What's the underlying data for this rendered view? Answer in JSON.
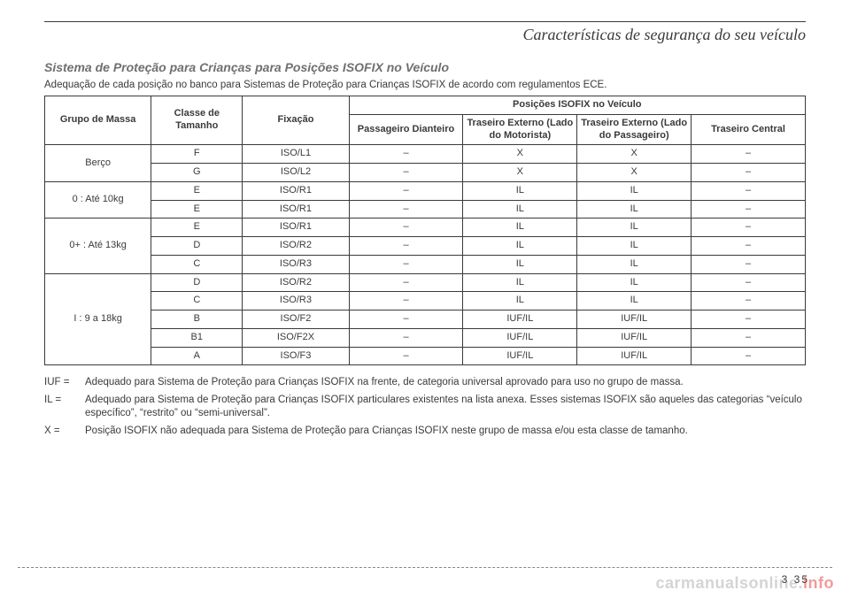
{
  "header": {
    "title": "Características de segurança do seu veículo"
  },
  "section": {
    "title": "Sistema de Proteção para Crianças para Posições ISOFIX no Veículo",
    "lead": "Adequação de cada posição no banco para Sistemas de Proteção para Crianças ISOFIX de acordo com regulamentos ECE."
  },
  "table": {
    "headers": {
      "massGroup": "Grupo de Massa",
      "sizeClass": "Classe de Tamanho",
      "fixation": "Fixação",
      "positionsTitle": "Posições ISOFIX no Veículo",
      "frontPassenger": "Passageiro Dianteiro",
      "rearDriver": "Traseiro Externo (Lado do Motorista)",
      "rearPassenger": "Traseiro Externo (Lado do Passageiro)",
      "rearCenter": "Traseiro Central"
    },
    "colWidths": [
      "14%",
      "12%",
      "14%",
      "15%",
      "15%",
      "15%",
      "15%"
    ],
    "groups": [
      {
        "label": "Berço",
        "rows": [
          {
            "sizeClass": "F",
            "fixation": "ISO/L1",
            "front": "–",
            "rearDriver": "X",
            "rearPassenger": "X",
            "rearCenter": "–"
          },
          {
            "sizeClass": "G",
            "fixation": "ISO/L2",
            "front": "–",
            "rearDriver": "X",
            "rearPassenger": "X",
            "rearCenter": "–"
          }
        ]
      },
      {
        "label": "0 : Até 10kg",
        "rows": [
          {
            "sizeClass": "E",
            "fixation": "ISO/R1",
            "front": "–",
            "rearDriver": "IL",
            "rearPassenger": "IL",
            "rearCenter": "–"
          },
          {
            "sizeClass": "E",
            "fixation": "ISO/R1",
            "front": "–",
            "rearDriver": "IL",
            "rearPassenger": "IL",
            "rearCenter": "–"
          }
        ]
      },
      {
        "label": "0+ : Até 13kg",
        "rows": [
          {
            "sizeClass": "E",
            "fixation": "ISO/R1",
            "front": "–",
            "rearDriver": "IL",
            "rearPassenger": "IL",
            "rearCenter": "–"
          },
          {
            "sizeClass": "D",
            "fixation": "ISO/R2",
            "front": "–",
            "rearDriver": "IL",
            "rearPassenger": "IL",
            "rearCenter": "–"
          },
          {
            "sizeClass": "C",
            "fixation": "ISO/R3",
            "front": "–",
            "rearDriver": "IL",
            "rearPassenger": "IL",
            "rearCenter": "–"
          }
        ]
      },
      {
        "label": "I : 9 a 18kg",
        "rows": [
          {
            "sizeClass": "D",
            "fixation": "ISO/R2",
            "front": "–",
            "rearDriver": "IL",
            "rearPassenger": "IL",
            "rearCenter": "–"
          },
          {
            "sizeClass": "C",
            "fixation": "ISO/R3",
            "front": "–",
            "rearDriver": "IL",
            "rearPassenger": "IL",
            "rearCenter": "–"
          },
          {
            "sizeClass": "B",
            "fixation": "ISO/F2",
            "front": "–",
            "rearDriver": "IUF/IL",
            "rearPassenger": "IUF/IL",
            "rearCenter": "–"
          },
          {
            "sizeClass": "B1",
            "fixation": "ISO/F2X",
            "front": "–",
            "rearDriver": "IUF/IL",
            "rearPassenger": "IUF/IL",
            "rearCenter": "–"
          },
          {
            "sizeClass": "A",
            "fixation": "ISO/F3",
            "front": "–",
            "rearDriver": "IUF/IL",
            "rearPassenger": "IUF/IL",
            "rearCenter": "–"
          }
        ]
      }
    ]
  },
  "legend": [
    {
      "key": "IUF =",
      "text": "Adequado para Sistema de Proteção para Crianças ISOFIX na frente, de categoria universal aprovado para uso no grupo de massa."
    },
    {
      "key": "IL =",
      "text": "Adequado para Sistema de Proteção para Crianças ISOFIX particulares existentes na lista anexa. Esses sistemas ISOFIX são aqueles das categorias “veículo específico”, “restrito” ou “semi-universal”."
    },
    {
      "key": "X =",
      "text": "Posição ISOFIX não adequada para Sistema de Proteção para Crianças ISOFIX neste grupo de massa e/ou esta classe de tamanho."
    }
  ],
  "footer": {
    "pageNumber": "3 35",
    "watermarkMain": "carmanualsonline.",
    "watermarkInfo": "info"
  }
}
